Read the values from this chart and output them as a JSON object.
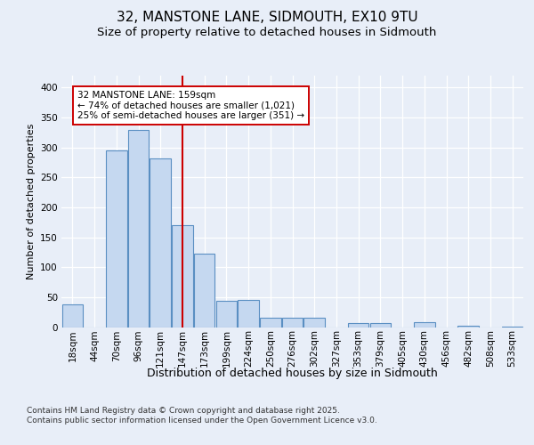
{
  "title_line1": "32, MANSTONE LANE, SIDMOUTH, EX10 9TU",
  "title_line2": "Size of property relative to detached houses in Sidmouth",
  "xlabel": "Distribution of detached houses by size in Sidmouth",
  "ylabel": "Number of detached properties",
  "bin_labels": [
    "18sqm",
    "44sqm",
    "70sqm",
    "96sqm",
    "121sqm",
    "147sqm",
    "173sqm",
    "199sqm",
    "224sqm",
    "250sqm",
    "276sqm",
    "302sqm",
    "327sqm",
    "353sqm",
    "379sqm",
    "405sqm",
    "430sqm",
    "456sqm",
    "482sqm",
    "508sqm",
    "533sqm"
  ],
  "bar_values": [
    38,
    0,
    295,
    330,
    282,
    170,
    123,
    44,
    46,
    15,
    15,
    16,
    0,
    6,
    6,
    0,
    8,
    0,
    2,
    0,
    1
  ],
  "bar_color": "#c5d8f0",
  "bar_edge_color": "#5a8fc2",
  "vline_pos": 5.0,
  "vline_color": "#cc0000",
  "annotation_text": "32 MANSTONE LANE: 159sqm\n← 74% of detached houses are smaller (1,021)\n25% of semi-detached houses are larger (351) →",
  "annotation_box_bg": "#ffffff",
  "annotation_box_edge": "#cc0000",
  "ylim": [
    0,
    420
  ],
  "yticks": [
    0,
    50,
    100,
    150,
    200,
    250,
    300,
    350,
    400
  ],
  "bg_color": "#e8eef8",
  "grid_color": "#ffffff",
  "footer_text": "Contains HM Land Registry data © Crown copyright and database right 2025.\nContains public sector information licensed under the Open Government Licence v3.0.",
  "title_fontsize": 11,
  "subtitle_fontsize": 9.5,
  "ylabel_fontsize": 8,
  "xlabel_fontsize": 9,
  "tick_fontsize": 7.5,
  "annotation_fontsize": 7.5,
  "footer_fontsize": 6.5
}
